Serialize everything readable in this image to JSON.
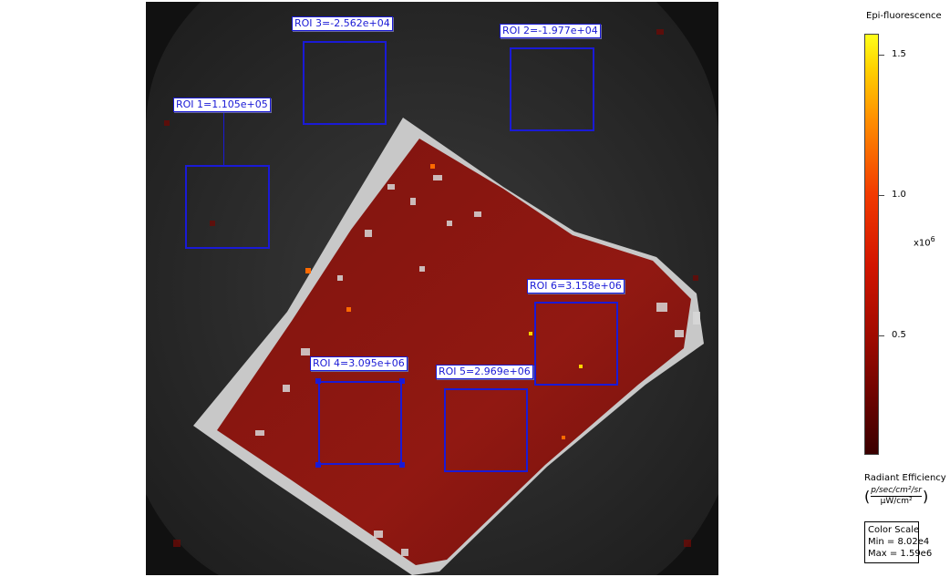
{
  "image": {
    "description_icon": "fluorescence-image"
  },
  "rois": [
    {
      "label": "ROI 1=1.105e+05"
    },
    {
      "label": "ROI 2=-1.977e+04"
    },
    {
      "label": "ROI 3=-2.562e+04"
    },
    {
      "label": "ROI 4=3.095e+06"
    },
    {
      "label": "ROI 5=2.969e+06"
    },
    {
      "label": "ROI 6=3.158e+06"
    }
  ],
  "colorbar": {
    "title": "Epi-fluorescence",
    "ticks": [
      "1.5",
      "1.0",
      "0.5"
    ],
    "exponent_base": "x10",
    "exponent_power": "6",
    "units_title": "Radiant Efficiency",
    "units_numerator": "p/sec/cm²/sr",
    "units_denominator": "µW/cm²",
    "scale_title": "Color Scale",
    "scale_min": "Min = 8.02e4",
    "scale_max": "Max = 1.59e6",
    "colors": {
      "roi": "#1a1ad6",
      "high": "#ffff1a",
      "low": "#3a0000"
    }
  }
}
